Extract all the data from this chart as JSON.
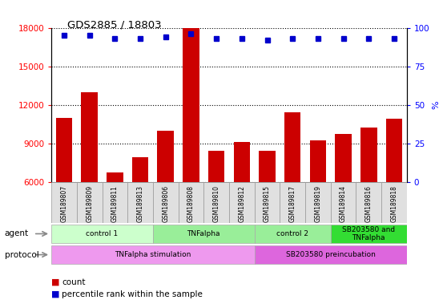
{
  "title": "GDS2885 / 18803",
  "samples": [
    "GSM189807",
    "GSM189809",
    "GSM189811",
    "GSM189813",
    "GSM189806",
    "GSM189808",
    "GSM189810",
    "GSM189812",
    "GSM189815",
    "GSM189817",
    "GSM189819",
    "GSM189814",
    "GSM189816",
    "GSM189818"
  ],
  "counts": [
    11000,
    13000,
    6700,
    7900,
    10000,
    18000,
    8400,
    9100,
    8400,
    11400,
    9200,
    9700,
    10200,
    10900
  ],
  "percentile_ranks": [
    95,
    95,
    93,
    93,
    94,
    96,
    93,
    93,
    92,
    93,
    93,
    93,
    93,
    93
  ],
  "bar_color": "#cc0000",
  "dot_color": "#0000cc",
  "ylim_left": [
    6000,
    18000
  ],
  "ylim_right": [
    0,
    100
  ],
  "yticks_left": [
    6000,
    9000,
    12000,
    15000,
    18000
  ],
  "yticks_right": [
    0,
    25,
    50,
    75,
    100
  ],
  "agent_groups": [
    {
      "label": "control 1",
      "start": 0,
      "end": 4,
      "color": "#ccffcc"
    },
    {
      "label": "TNFalpha",
      "start": 4,
      "end": 8,
      "color": "#99ee99"
    },
    {
      "label": "control 2",
      "start": 8,
      "end": 11,
      "color": "#99ee99"
    },
    {
      "label": "SB203580 and\nTNFalpha",
      "start": 11,
      "end": 14,
      "color": "#33dd33"
    }
  ],
  "protocol_groups": [
    {
      "label": "TNFalpha stimulation",
      "start": 0,
      "end": 8,
      "color": "#ee99ee"
    },
    {
      "label": "SB203580 preincubation",
      "start": 8,
      "end": 14,
      "color": "#dd66dd"
    }
  ],
  "legend_count_color": "#cc0000",
  "legend_dot_color": "#0000cc",
  "agent_label": "agent",
  "protocol_label": "protocol",
  "bg_color": "#ffffff"
}
